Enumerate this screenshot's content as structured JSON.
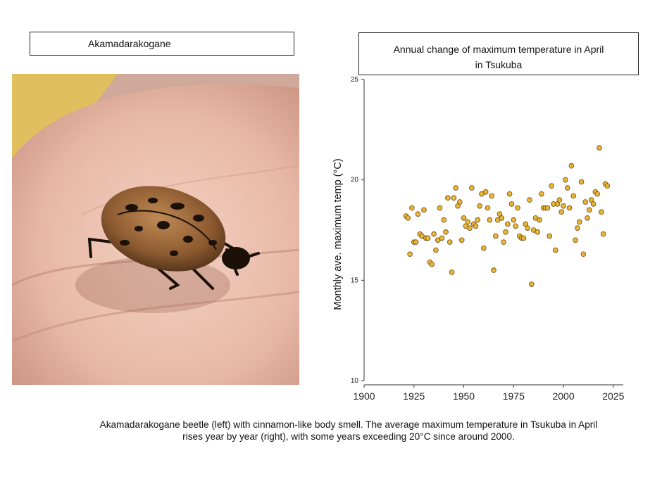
{
  "photo_title": "Akamadarakogane",
  "chart_title": [
    "Annual change of maximum temperature in April",
    "in Tsukuba"
  ],
  "caption": [
    "Akamadarakogane beetle (left) with cinnamon-like body smell. The average maximum temperature in Tsukuba in April",
    "rises year by year (right), with some years exceeding 20°C since around 2000."
  ],
  "colors": {
    "point_fill": "#e8b53a",
    "point_stroke": "#6b4a10",
    "axis": "#333333"
  },
  "chart_data": {
    "type": "scatter",
    "title": "Annual change of maximum temperature in April in Tsukuba",
    "xlabel": "",
    "ylabel": "Monthly ave. maximum temp (°C)",
    "xlim": [
      1900,
      2030
    ],
    "ylim": [
      10,
      25
    ],
    "xticks": [
      1900,
      1925,
      1950,
      1975,
      2000,
      2025
    ],
    "yticks": [
      10,
      15,
      20,
      25
    ],
    "grid": false,
    "points": [
      [
        1921,
        18.2
      ],
      [
        1922,
        18.1
      ],
      [
        1923,
        16.3
      ],
      [
        1924,
        18.6
      ],
      [
        1925,
        16.9
      ],
      [
        1926,
        16.9
      ],
      [
        1927,
        18.3
      ],
      [
        1928,
        17.3
      ],
      [
        1929,
        17.2
      ],
      [
        1930,
        18.5
      ],
      [
        1931,
        17.1
      ],
      [
        1932,
        17.1
      ],
      [
        1933,
        15.9
      ],
      [
        1934,
        15.8
      ],
      [
        1935,
        17.3
      ],
      [
        1936,
        16.5
      ],
      [
        1937,
        17.0
      ],
      [
        1938,
        18.6
      ],
      [
        1939,
        17.1
      ],
      [
        1940,
        18.0
      ],
      [
        1941,
        17.4
      ],
      [
        1942,
        19.1
      ],
      [
        1943,
        16.9
      ],
      [
        1944,
        15.4
      ],
      [
        1945,
        19.1
      ],
      [
        1946,
        19.6
      ],
      [
        1947,
        18.7
      ],
      [
        1948,
        18.9
      ],
      [
        1949,
        17.0
      ],
      [
        1950,
        18.1
      ],
      [
        1951,
        17.7
      ],
      [
        1952,
        17.9
      ],
      [
        1953,
        17.6
      ],
      [
        1954,
        19.6
      ],
      [
        1955,
        17.8
      ],
      [
        1956,
        17.7
      ],
      [
        1957,
        18.0
      ],
      [
        1958,
        18.7
      ],
      [
        1959,
        19.3
      ],
      [
        1960,
        16.6
      ],
      [
        1961,
        19.4
      ],
      [
        1962,
        18.6
      ],
      [
        1963,
        18.0
      ],
      [
        1964,
        19.2
      ],
      [
        1965,
        15.5
      ],
      [
        1966,
        17.2
      ],
      [
        1967,
        18.0
      ],
      [
        1968,
        18.3
      ],
      [
        1969,
        18.1
      ],
      [
        1970,
        16.9
      ],
      [
        1971,
        17.4
      ],
      [
        1972,
        17.8
      ],
      [
        1973,
        19.3
      ],
      [
        1974,
        18.8
      ],
      [
        1975,
        18.0
      ],
      [
        1976,
        17.7
      ],
      [
        1977,
        18.6
      ],
      [
        1978,
        17.2
      ],
      [
        1979,
        17.1
      ],
      [
        1980,
        17.1
      ],
      [
        1981,
        17.8
      ],
      [
        1982,
        17.6
      ],
      [
        1983,
        19.0
      ],
      [
        1984,
        14.8
      ],
      [
        1985,
        17.5
      ],
      [
        1986,
        18.1
      ],
      [
        1987,
        17.4
      ],
      [
        1988,
        18.0
      ],
      [
        1989,
        19.3
      ],
      [
        1990,
        18.6
      ],
      [
        1991,
        18.6
      ],
      [
        1992,
        18.6
      ],
      [
        1993,
        17.2
      ],
      [
        1994,
        19.7
      ],
      [
        1995,
        18.8
      ],
      [
        1996,
        16.5
      ],
      [
        1997,
        18.8
      ],
      [
        1998,
        19.0
      ],
      [
        1999,
        18.4
      ],
      [
        2000,
        18.7
      ],
      [
        2001,
        20.0
      ],
      [
        2002,
        19.6
      ],
      [
        2003,
        18.6
      ],
      [
        2004,
        20.7
      ],
      [
        2005,
        19.2
      ],
      [
        2006,
        17.0
      ],
      [
        2007,
        17.6
      ],
      [
        2008,
        17.9
      ],
      [
        2009,
        19.9
      ],
      [
        2010,
        16.3
      ],
      [
        2011,
        18.9
      ],
      [
        2012,
        18.1
      ],
      [
        2013,
        18.5
      ],
      [
        2014,
        19.0
      ],
      [
        2015,
        18.8
      ],
      [
        2016,
        19.4
      ],
      [
        2017,
        19.3
      ],
      [
        2018,
        21.6
      ],
      [
        2019,
        18.4
      ],
      [
        2020,
        17.3
      ],
      [
        2021,
        19.8
      ],
      [
        2022,
        19.7
      ]
    ]
  }
}
